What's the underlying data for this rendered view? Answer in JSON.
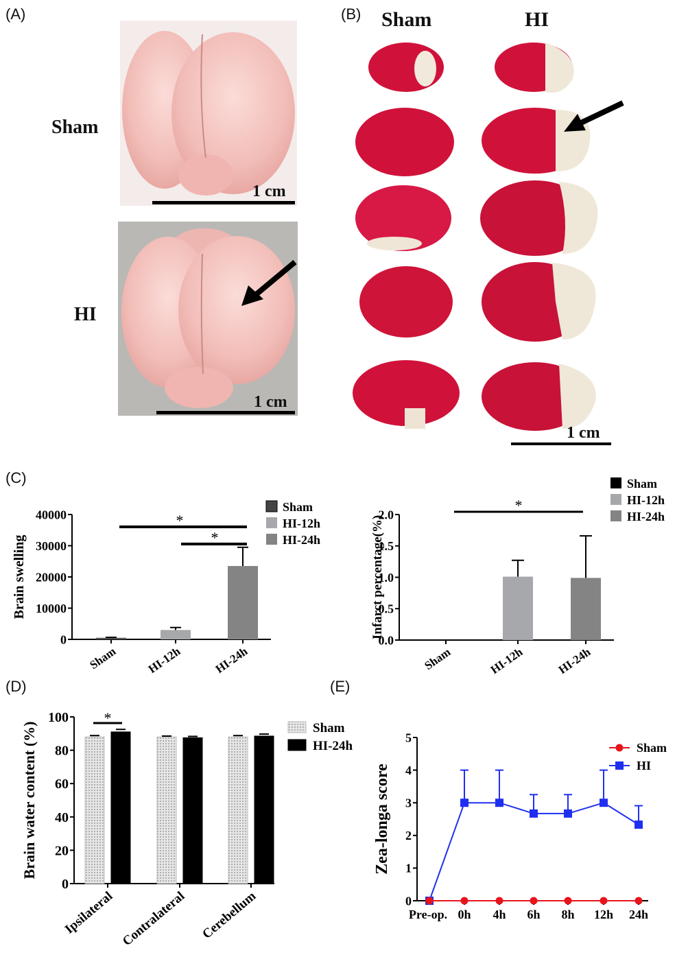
{
  "panels": {
    "a": "(A)",
    "b": "(B)",
    "c": "(C)",
    "d": "(D)",
    "e": "(E)"
  },
  "panel_a": {
    "row_labels": [
      "Sham",
      "HI"
    ],
    "scale_bar": "1 cm"
  },
  "panel_b": {
    "column_labels": [
      "Sham",
      "HI"
    ],
    "scale_bar": "1 cm"
  },
  "colors": {
    "brain_tissue": "#f2c0bd",
    "ttc_red": "#d0123a",
    "infarct_white": "#efe8d8",
    "sham_gray": "#555555",
    "hi12_gray": "#a7a8ab",
    "hi24_gray": "#848484",
    "line_sham": "#e8141b",
    "line_hi": "#1f2ff0"
  },
  "chart_data": [
    {
      "id": "c-left",
      "type": "bar",
      "categories": [
        "Sham",
        "HI-12h",
        "HI-24h"
      ],
      "values": [
        500,
        3000,
        23500
      ],
      "errors": [
        150,
        800,
        6000
      ],
      "ylabel": "Brain swelling",
      "ylim": [
        0,
        40000
      ],
      "yticks": [
        0,
        10000,
        20000,
        30000,
        40000
      ],
      "legend": [
        "Sham",
        "HI-12h",
        "HI-24h"
      ],
      "significance": [
        {
          "label": "*",
          "from": 0,
          "to": 2
        },
        {
          "label": "*",
          "from": 1,
          "to": 2
        }
      ]
    },
    {
      "id": "c-right",
      "type": "bar",
      "categories": [
        "Sham",
        "HI-12h",
        "HI-24h"
      ],
      "values": [
        0.01,
        1.01,
        0.99
      ],
      "errors": [
        0,
        0.26,
        0.67
      ],
      "ylabel": "Infarct percentage(%)",
      "ylim": [
        0,
        2.0
      ],
      "yticks": [
        "0.0",
        "0.5",
        "1.0",
        "1.5",
        "2.0"
      ],
      "legend": [
        "Sham",
        "HI-12h",
        "HI-24h"
      ],
      "significance": [
        {
          "label": "*",
          "from": 0,
          "to": 2
        }
      ]
    },
    {
      "id": "d",
      "type": "bar",
      "categories": [
        "Ipsilateral",
        "Contralateral",
        "Cerebellum"
      ],
      "series": [
        {
          "name": "Sham",
          "values": [
            88,
            88,
            88
          ],
          "errors": [
            0.8,
            0.5,
            0.8
          ]
        },
        {
          "name": "HI-24h",
          "values": [
            91,
            87.5,
            88.5
          ],
          "errors": [
            1.5,
            0.8,
            1.2
          ]
        }
      ],
      "ylabel": "Brain water content (%)",
      "ylim": [
        0,
        100
      ],
      "yticks": [
        0,
        20,
        40,
        60,
        80,
        100
      ],
      "significance": [
        {
          "label": "*",
          "category": 0
        }
      ]
    },
    {
      "id": "e",
      "type": "line",
      "x": [
        "Pre-op.",
        "0h",
        "4h",
        "6h",
        "8h",
        "12h",
        "24h"
      ],
      "series": [
        {
          "name": "Sham",
          "values": [
            0,
            0,
            0,
            0,
            0,
            0,
            0
          ]
        },
        {
          "name": "HI",
          "values": [
            0,
            3,
            3,
            2.67,
            2.67,
            3,
            2.33
          ],
          "errors": [
            0,
            1,
            1,
            0.58,
            0.58,
            1,
            0.58
          ]
        }
      ],
      "ylabel": "Zea-longa score",
      "ylim": [
        0,
        5
      ],
      "yticks": [
        0,
        1,
        2,
        3,
        4,
        5
      ]
    }
  ]
}
